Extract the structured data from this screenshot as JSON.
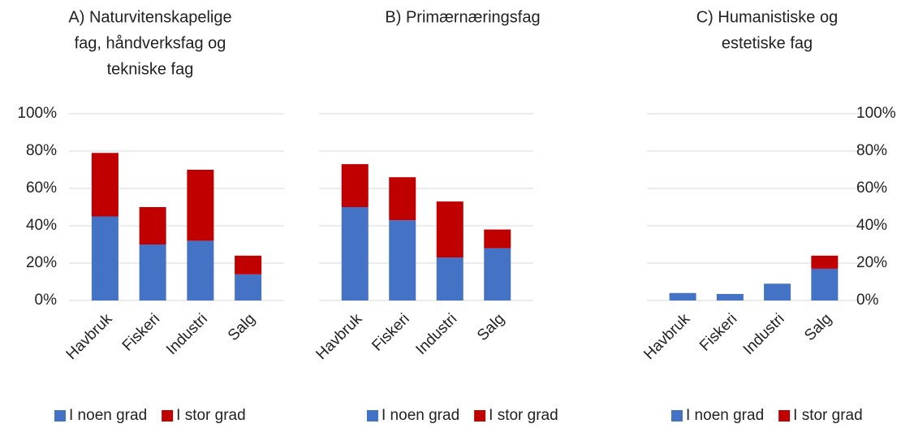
{
  "chart_data": [
    {
      "type": "bar",
      "stacked": true,
      "title": [
        "A) Naturvitenskapelige",
        "fag, håndverksfag og",
        "tekniske fag"
      ],
      "categories": [
        "Havbruk",
        "Fiskeri",
        "Industri",
        "Salg"
      ],
      "series": [
        {
          "name": "I noen grad",
          "color": "#4472c4",
          "values": [
            45,
            30,
            32,
            14
          ]
        },
        {
          "name": "I stor grad",
          "color": "#c00000",
          "values": [
            34,
            20,
            38,
            10
          ]
        }
      ],
      "ylim": [
        0,
        100
      ],
      "yticks": [
        {
          "value": 0,
          "label": "0%"
        },
        {
          "value": 20,
          "label": "20%"
        },
        {
          "value": 40,
          "label": "40%"
        },
        {
          "value": 60,
          "label": "60%"
        },
        {
          "value": 80,
          "label": "80%"
        },
        {
          "value": 100,
          "label": "100%"
        }
      ],
      "yaxis": "left",
      "grid": true,
      "legend": "bottom"
    },
    {
      "type": "bar",
      "stacked": true,
      "title": [
        "B) Primærnæringsfag"
      ],
      "categories": [
        "Havbruk",
        "Fiskeri",
        "Industri",
        "Salg"
      ],
      "series": [
        {
          "name": "I noen grad",
          "color": "#4472c4",
          "values": [
            50,
            43,
            23,
            28
          ]
        },
        {
          "name": "I stor grad",
          "color": "#c00000",
          "values": [
            23,
            23,
            30,
            10
          ]
        }
      ],
      "ylim": [
        0,
        100
      ],
      "yticks": [
        {
          "value": 0,
          "label": "0%"
        },
        {
          "value": 20,
          "label": "20%"
        },
        {
          "value": 40,
          "label": "40%"
        },
        {
          "value": 60,
          "label": "60%"
        },
        {
          "value": 80,
          "label": "80%"
        },
        {
          "value": 100,
          "label": "100%"
        }
      ],
      "yaxis": "hidden",
      "grid": true,
      "legend": "bottom"
    },
    {
      "type": "bar",
      "stacked": true,
      "title": [
        "C) Humanistiske og",
        "estetiske fag"
      ],
      "categories": [
        "Havbruk",
        "Fiskeri",
        "Industri",
        "Salg"
      ],
      "series": [
        {
          "name": "I noen grad",
          "color": "#4472c4",
          "values": [
            4,
            3.5,
            9,
            17
          ]
        },
        {
          "name": "I stor grad",
          "color": "#c00000",
          "values": [
            0,
            0,
            0,
            7
          ]
        }
      ],
      "ylim": [
        0,
        100
      ],
      "yticks": [
        {
          "value": 0,
          "label": "0%"
        },
        {
          "value": 20,
          "label": "20%"
        },
        {
          "value": 40,
          "label": "40%"
        },
        {
          "value": 60,
          "label": "60%"
        },
        {
          "value": 80,
          "label": "80%"
        },
        {
          "value": 100,
          "label": "100%"
        }
      ],
      "yaxis": "right",
      "grid": true,
      "legend": "bottom"
    }
  ]
}
